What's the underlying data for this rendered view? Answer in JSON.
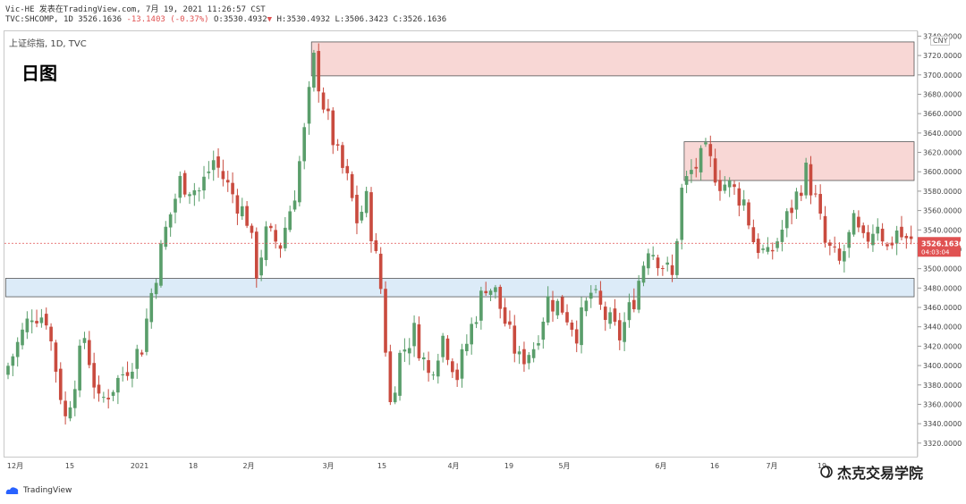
{
  "header": {
    "published_by": "Vic-HE 发表在TradingView.com, 7月 19, 2021 11:26:57 CST",
    "symbol_line": "TVC:SHCOMP, 1D 3526.1636",
    "change": "-13.1403 (-0.37%)",
    "open": "O:3530.4932",
    "high": "H:3530.4932",
    "low": "L:3506.3423",
    "close": "C:3526.1636"
  },
  "chart_header": {
    "symbol_description": "上证综指, 1D, TVC",
    "label": "日图",
    "currency": "CNY"
  },
  "footer": {
    "brand": "TradingView",
    "author_watermark": "杰克交易学院"
  },
  "colors": {
    "up": "#5a9e6b",
    "down": "#c94b3f",
    "supply_zone": "#f8d7d5",
    "demand_zone": "#dcebf8",
    "last_price_tag": "#e05252"
  },
  "chart_data": {
    "type": "candlestick",
    "symbol": "TVC:SHCOMP",
    "interval": "1D",
    "y_axis": {
      "ticks": [
        3320,
        3340,
        3360,
        3380,
        3400,
        3420,
        3440,
        3460,
        3480,
        3500,
        3520,
        3540,
        3560,
        3580,
        3600,
        3620,
        3640,
        3660,
        3680,
        3700,
        3720,
        3740
      ],
      "range": [
        3306,
        3745
      ],
      "decimals": 4
    },
    "x_axis": {
      "labels": [
        "12月",
        "15",
        "2021",
        "18",
        "2月",
        "3月",
        "15",
        "4月",
        "19",
        "5月",
        "6月",
        "16",
        "7月",
        "19"
      ]
    },
    "last_price": {
      "value": "3526.1636",
      "countdown": "04:03:04"
    },
    "zones": [
      {
        "kind": "supply",
        "from_index": 64,
        "to_index": 206,
        "low": 3699,
        "high": 3734
      },
      {
        "kind": "supply",
        "from_index": 142,
        "to_index": 206,
        "low": 3591,
        "high": 3631
      },
      {
        "kind": "demand",
        "from_index": 0,
        "to_index": 206,
        "low": 3471,
        "high": 3490
      }
    ],
    "anchors": [
      [
        0,
        3400
      ],
      [
        5,
        3455
      ],
      [
        8,
        3450
      ],
      [
        12,
        3345
      ],
      [
        16,
        3430
      ],
      [
        19,
        3360
      ],
      [
        23,
        3385
      ],
      [
        28,
        3420
      ],
      [
        30,
        3475
      ],
      [
        33,
        3540
      ],
      [
        36,
        3590
      ],
      [
        40,
        3580
      ],
      [
        43,
        3612
      ],
      [
        46,
        3585
      ],
      [
        50,
        3552
      ],
      [
        52,
        3498
      ],
      [
        54,
        3535
      ],
      [
        57,
        3525
      ],
      [
        60,
        3580
      ],
      [
        62,
        3640
      ],
      [
        64,
        3715
      ],
      [
        66,
        3670
      ],
      [
        69,
        3615
      ],
      [
        71,
        3590
      ],
      [
        73,
        3550
      ],
      [
        75,
        3570
      ],
      [
        78,
        3480
      ],
      [
        80,
        3360
      ],
      [
        82,
        3410
      ],
      [
        85,
        3435
      ],
      [
        88,
        3390
      ],
      [
        91,
        3430
      ],
      [
        94,
        3390
      ],
      [
        97,
        3440
      ],
      [
        100,
        3485
      ],
      [
        102,
        3475
      ],
      [
        105,
        3430
      ],
      [
        107,
        3405
      ],
      [
        110,
        3420
      ],
      [
        113,
        3468
      ],
      [
        116,
        3460
      ],
      [
        119,
        3435
      ],
      [
        122,
        3475
      ],
      [
        125,
        3450
      ],
      [
        128,
        3430
      ],
      [
        131,
        3470
      ],
      [
        134,
        3525
      ],
      [
        137,
        3505
      ],
      [
        139,
        3490
      ],
      [
        141,
        3580
      ],
      [
        143,
        3600
      ],
      [
        146,
        3618
      ],
      [
        149,
        3590
      ],
      [
        151,
        3585
      ],
      [
        154,
        3570
      ],
      [
        156,
        3530
      ],
      [
        159,
        3510
      ],
      [
        162,
        3540
      ],
      [
        165,
        3575
      ],
      [
        167,
        3600
      ],
      [
        169,
        3570
      ],
      [
        171,
        3525
      ],
      [
        174,
        3505
      ],
      [
        177,
        3545
      ],
      [
        179,
        3525
      ],
      [
        182,
        3550
      ],
      [
        184,
        3520
      ],
      [
        186,
        3540
      ],
      [
        188,
        3526
      ]
    ]
  }
}
